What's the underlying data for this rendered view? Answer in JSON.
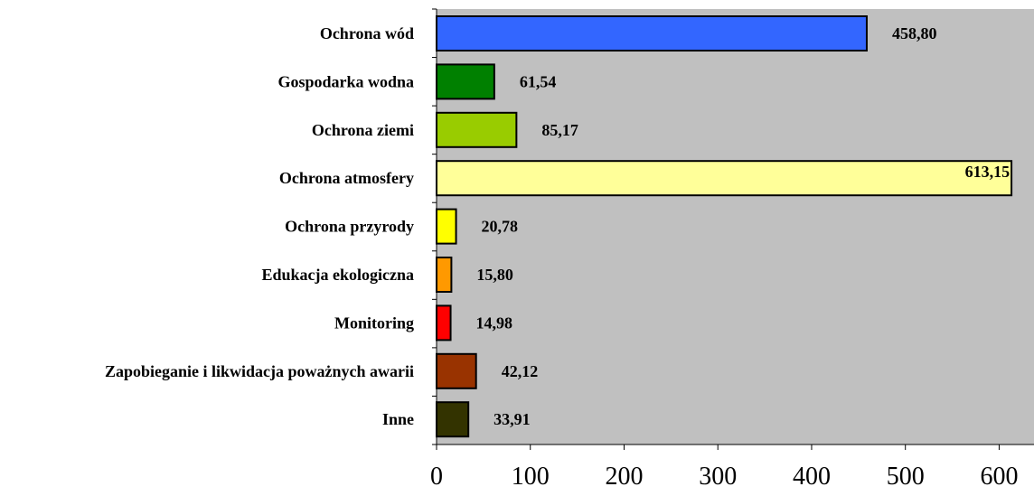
{
  "chart_data": {
    "type": "bar",
    "orientation": "horizontal",
    "title": "",
    "xlabel": "",
    "ylabel": "",
    "xlim": [
      0,
      620
    ],
    "x_ticks": [
      0,
      100,
      200,
      300,
      400,
      500,
      600
    ],
    "grid": false,
    "legend": "none",
    "plot_background": "#c0c0c0",
    "categories": [
      "Ochrona wód",
      "Gospodarka wodna",
      "Ochrona ziemi",
      "Ochrona atmosfery",
      "Ochrona przyrody",
      "Edukacja ekologiczna",
      "Monitoring",
      "Zapobieganie i likwidacja poważnych awarii",
      "Inne"
    ],
    "values": [
      458.8,
      61.54,
      85.17,
      613.15,
      20.78,
      15.8,
      14.98,
      42.12,
      33.91
    ],
    "value_labels": [
      "458,80",
      "61,54",
      "85,17",
      "613,15",
      "20,78",
      "15,80",
      "14,98",
      "42,12",
      "33,91"
    ],
    "colors": [
      "#3366ff",
      "#008000",
      "#99cc00",
      "#ffff99",
      "#ffff00",
      "#ff9900",
      "#ff0000",
      "#993300",
      "#333300"
    ]
  }
}
